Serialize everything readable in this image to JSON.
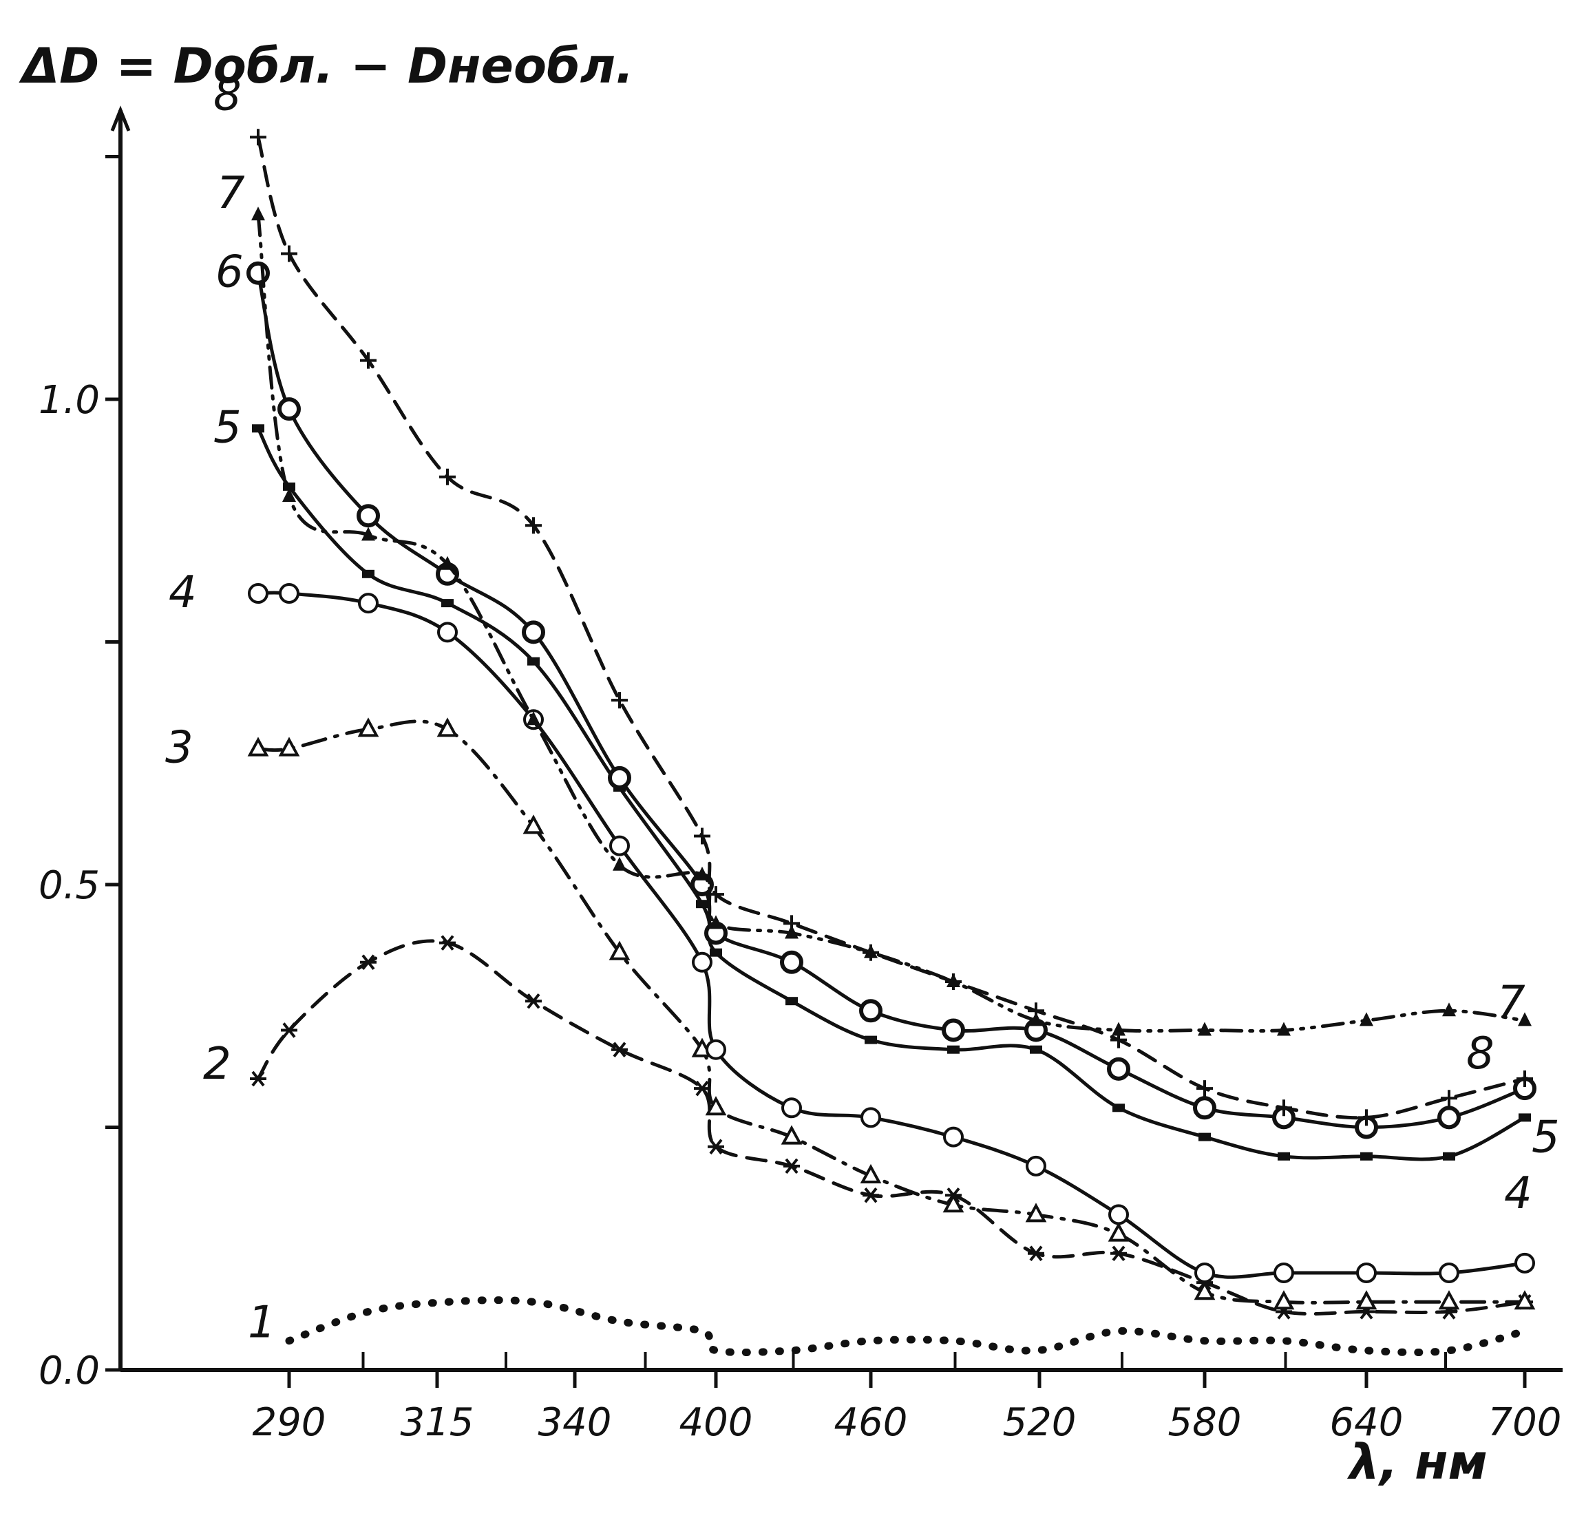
{
  "chart_data": {
    "type": "line",
    "ylabel": "ΔD = Dобл. − Dнеобл.",
    "xlabel": "λ, нм",
    "x_ticks": [
      "290",
      "315",
      "340",
      "400",
      "460",
      "520",
      "580",
      "640",
      "700"
    ],
    "x": [
      "285",
      "290",
      "300",
      "315",
      "330",
      "340",
      "360",
      "400",
      "430",
      "460",
      "490",
      "520",
      "550",
      "580",
      "610",
      "640",
      "670",
      "700"
    ],
    "y_ticks": [
      "0.0",
      "0.5",
      "1.0"
    ],
    "ylim": [
      0,
      1.3
    ],
    "grid": false,
    "legend": "curve numbers written next to the curve ends",
    "series": [
      {
        "name": "1",
        "style": "dotted",
        "marker": "dot",
        "values": [
          null,
          0.03,
          0.06,
          0.07,
          0.07,
          0.05,
          0.04,
          0.02,
          0.02,
          0.03,
          0.03,
          0.02,
          0.04,
          0.03,
          0.03,
          0.02,
          0.02,
          0.04
        ]
      },
      {
        "name": "2",
        "style": "dashed",
        "marker": "asterisk",
        "values": [
          0.3,
          0.35,
          0.42,
          0.44,
          0.38,
          0.33,
          0.29,
          0.23,
          0.21,
          0.18,
          0.18,
          0.12,
          0.12,
          0.09,
          0.06,
          0.06,
          0.06,
          0.07
        ]
      },
      {
        "name": "3",
        "style": "dash-dot",
        "marker": "triangle-open",
        "values": [
          0.64,
          0.64,
          0.66,
          0.66,
          0.56,
          0.43,
          0.33,
          0.27,
          0.24,
          0.2,
          0.17,
          0.16,
          0.14,
          0.08,
          0.07,
          0.07,
          0.07,
          0.07
        ]
      },
      {
        "name": "4",
        "style": "solid",
        "marker": "circle-open",
        "values": [
          0.8,
          0.8,
          0.79,
          0.76,
          0.67,
          0.54,
          0.42,
          0.33,
          0.27,
          0.26,
          0.24,
          0.21,
          0.16,
          0.1,
          0.1,
          0.1,
          0.1,
          0.11
        ]
      },
      {
        "name": "5",
        "style": "solid",
        "marker": "square-filled",
        "values": [
          0.97,
          0.91,
          0.82,
          0.79,
          0.73,
          0.6,
          0.48,
          0.43,
          0.38,
          0.34,
          0.33,
          0.33,
          0.27,
          0.24,
          0.22,
          0.22,
          0.22,
          0.26
        ]
      },
      {
        "name": "6",
        "style": "solid",
        "marker": "circle-dot",
        "values": [
          1.13,
          0.99,
          0.88,
          0.82,
          0.76,
          0.61,
          0.5,
          0.45,
          0.42,
          0.37,
          0.35,
          0.35,
          0.31,
          0.27,
          0.26,
          0.25,
          0.26,
          0.29
        ]
      },
      {
        "name": "7",
        "style": "dash-dot-dot",
        "marker": "triangle-filled",
        "values": [
          1.19,
          0.9,
          0.86,
          0.83,
          0.67,
          0.52,
          0.51,
          0.46,
          0.45,
          0.43,
          0.4,
          0.36,
          0.35,
          0.35,
          0.35,
          0.36,
          0.37,
          0.36
        ]
      },
      {
        "name": "8",
        "style": "dashed",
        "marker": "plus",
        "values": [
          1.27,
          1.15,
          1.04,
          0.92,
          0.87,
          0.69,
          0.55,
          0.49,
          0.46,
          0.43,
          0.4,
          0.37,
          0.34,
          0.29,
          0.27,
          0.26,
          0.28,
          0.3
        ]
      }
    ]
  }
}
